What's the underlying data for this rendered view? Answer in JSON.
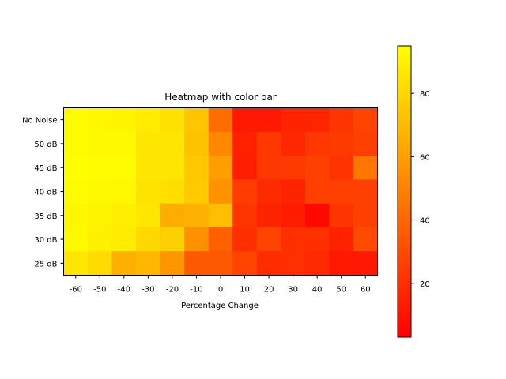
{
  "chart_data": {
    "type": "heatmap",
    "title": "Heatmap with color bar",
    "xlabel": "Percentage Change",
    "ylabel": "",
    "x_categories": [
      "-60",
      "-50",
      "-40",
      "-30",
      "-20",
      "-10",
      "0",
      "10",
      "20",
      "30",
      "40",
      "50",
      "60"
    ],
    "y_categories": [
      "No Noise",
      "50 dB",
      "45 dB",
      "40 dB",
      "35 dB",
      "30 dB",
      "25 dB"
    ],
    "values": [
      [
        94,
        92,
        91,
        88,
        84,
        74,
        42,
        12,
        12,
        16,
        16,
        22,
        27
      ],
      [
        94,
        93,
        93,
        86,
        86,
        73,
        52,
        15,
        23,
        17,
        23,
        24,
        26
      ],
      [
        95,
        94,
        94,
        86,
        86,
        75,
        60,
        14,
        23,
        24,
        26,
        21,
        46
      ],
      [
        94,
        93,
        92,
        85,
        83,
        76,
        56,
        25,
        18,
        16,
        26,
        26,
        26
      ],
      [
        92,
        91,
        89,
        86,
        65,
        67,
        72,
        22,
        16,
        13,
        6,
        22,
        26
      ],
      [
        93,
        90,
        88,
        81,
        78,
        55,
        38,
        20,
        27,
        20,
        20,
        15,
        30
      ],
      [
        86,
        82,
        66,
        69,
        57,
        35,
        35,
        28,
        19,
        20,
        18,
        12,
        12
      ]
    ],
    "colormap": "autumn",
    "colorbar": {
      "range": [
        3,
        95
      ],
      "ticks": [
        20,
        40,
        60,
        80
      ]
    }
  }
}
